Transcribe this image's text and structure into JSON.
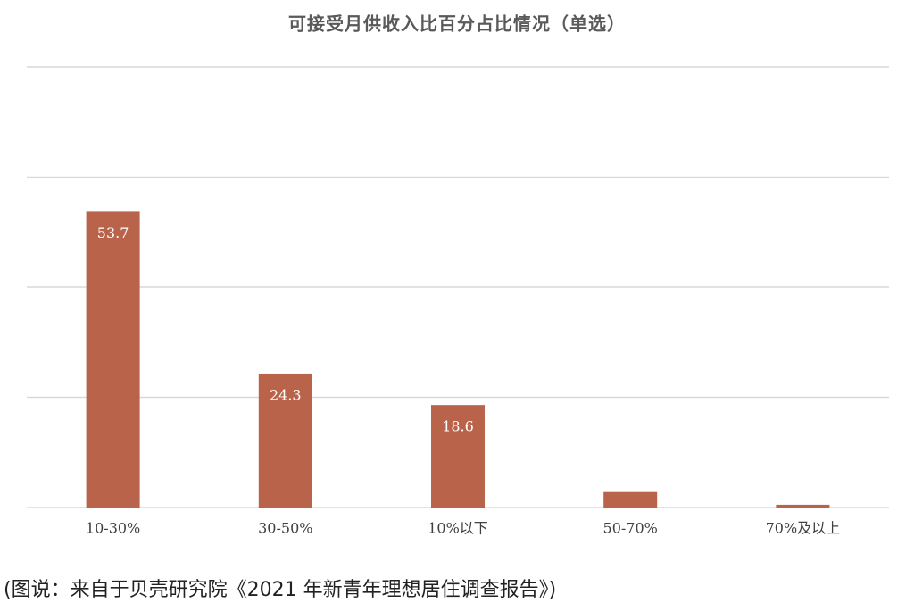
{
  "chart_data": {
    "type": "bar",
    "title": "可接受月供收入比百分占比情况（单选）",
    "categories": [
      "10-30%",
      "30-50%",
      "10%以下",
      "50-70%",
      "70%及以上"
    ],
    "values": [
      53.7,
      24.3,
      18.6,
      2.8,
      0.5
    ],
    "color": "#b9644a",
    "ylim": [
      0,
      80
    ],
    "yticks": [
      0,
      20,
      40,
      60,
      80
    ],
    "grid": true
  },
  "caption": "(图说：来自于贝壳研究院《2021 年新青年理想居住调查报告》)"
}
